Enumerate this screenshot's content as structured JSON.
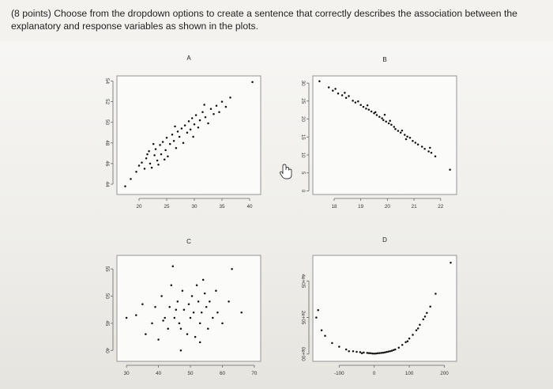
{
  "question": {
    "text": "(8 points) Choose from the dropdown options to create a sentence that correctly describes the association between the explanatory and response variables as shown in the plots."
  },
  "cursor": {
    "icon": "hand-cursor-icon"
  },
  "chart_data": [
    {
      "type": "scatter",
      "title": "A",
      "x_ticks": [
        "20",
        "25",
        "30",
        "35",
        "40"
      ],
      "y_ticks": [
        "44",
        "46",
        "48",
        "50",
        "52",
        "54"
      ],
      "xlim": [
        16,
        42
      ],
      "ylim": [
        43,
        54.5
      ],
      "points": [
        [
          17.5,
          43.8
        ],
        [
          18.5,
          44.5
        ],
        [
          19.5,
          45.2
        ],
        [
          20,
          45.8
        ],
        [
          20.5,
          46.1
        ],
        [
          21,
          45.5
        ],
        [
          21.3,
          46.5
        ],
        [
          21.8,
          47.2
        ],
        [
          22,
          46.0
        ],
        [
          22.3,
          45.6
        ],
        [
          22.8,
          46.8
        ],
        [
          23,
          47.4
        ],
        [
          23.3,
          46.3
        ],
        [
          23.8,
          47.8
        ],
        [
          24,
          46.9
        ],
        [
          24.3,
          48.1
        ],
        [
          24.8,
          47.3
        ],
        [
          25,
          48.5
        ],
        [
          25.2,
          46.7
        ],
        [
          25.6,
          47.9
        ],
        [
          26,
          48.8
        ],
        [
          26.3,
          48.2
        ],
        [
          26.7,
          47.5
        ],
        [
          27,
          49.1
        ],
        [
          27.3,
          48.6
        ],
        [
          27.7,
          49.4
        ],
        [
          28,
          48.0
        ],
        [
          28.3,
          49.7
        ],
        [
          28.7,
          49.0
        ],
        [
          29,
          50.1
        ],
        [
          29.3,
          49.3
        ],
        [
          29.6,
          50.4
        ],
        [
          30,
          49.8
        ],
        [
          30.3,
          50.7
        ],
        [
          30.7,
          49.5
        ],
        [
          31,
          50.2
        ],
        [
          31.5,
          51.0
        ],
        [
          32,
          50.5
        ],
        [
          32.5,
          49.9
        ],
        [
          33,
          51.3
        ],
        [
          33.5,
          50.8
        ],
        [
          34,
          51.6
        ],
        [
          34.5,
          51.0
        ],
        [
          35,
          52.0
        ],
        [
          35.7,
          51.5
        ],
        [
          36.5,
          52.4
        ],
        [
          40.5,
          53.9
        ],
        [
          21.5,
          46.9
        ],
        [
          22.6,
          47.9
        ],
        [
          24.6,
          46.4
        ],
        [
          26.5,
          49.6
        ],
        [
          29.8,
          48.6
        ],
        [
          31.8,
          51.7
        ],
        [
          23.5,
          45.9
        ]
      ]
    },
    {
      "type": "scatter",
      "title": "B",
      "x_ticks": [
        "18",
        "19",
        "20",
        "21",
        "22"
      ],
      "y_ticks": [
        "0",
        "5",
        "10",
        "15",
        "20",
        "25",
        "30"
      ],
      "xlim": [
        17.2,
        22.6
      ],
      "ylim": [
        -1,
        32
      ],
      "points": [
        [
          17.45,
          30.5
        ],
        [
          17.8,
          28.8
        ],
        [
          17.95,
          27.9
        ],
        [
          18.05,
          28.4
        ],
        [
          18.15,
          27.1
        ],
        [
          18.3,
          26.6
        ],
        [
          18.45,
          25.9
        ],
        [
          18.55,
          26.4
        ],
        [
          18.7,
          25.1
        ],
        [
          18.8,
          24.6
        ],
        [
          18.9,
          24.9
        ],
        [
          19.0,
          23.9
        ],
        [
          19.1,
          23.4
        ],
        [
          19.2,
          22.9
        ],
        [
          19.3,
          22.6
        ],
        [
          19.4,
          22.1
        ],
        [
          19.5,
          21.6
        ],
        [
          19.55,
          21.9
        ],
        [
          19.6,
          21.1
        ],
        [
          19.7,
          20.6
        ],
        [
          19.8,
          20.2
        ],
        [
          19.85,
          19.7
        ],
        [
          19.95,
          19.3
        ],
        [
          20.05,
          18.8
        ],
        [
          20.15,
          18.4
        ],
        [
          20.25,
          17.8
        ],
        [
          20.3,
          17.2
        ],
        [
          20.4,
          16.7
        ],
        [
          20.5,
          16.2
        ],
        [
          20.55,
          16.8
        ],
        [
          20.65,
          15.6
        ],
        [
          20.75,
          15.1
        ],
        [
          20.85,
          14.8
        ],
        [
          20.95,
          13.9
        ],
        [
          21.05,
          13.4
        ],
        [
          21.15,
          12.9
        ],
        [
          21.3,
          12.3
        ],
        [
          21.4,
          11.7
        ],
        [
          21.55,
          11.0
        ],
        [
          21.65,
          10.6
        ],
        [
          21.8,
          9.6
        ],
        [
          22.35,
          5.9
        ],
        [
          18.4,
          27.3
        ],
        [
          19.25,
          23.8
        ],
        [
          19.9,
          21.2
        ],
        [
          20.7,
          14.4
        ],
        [
          21.6,
          12.0
        ],
        [
          20.1,
          19.5
        ]
      ]
    },
    {
      "type": "scatter",
      "title": "C",
      "x_ticks": [
        "30",
        "40",
        "50",
        "60",
        "70"
      ],
      "y_ticks": [
        "40",
        "45",
        "50",
        "55"
      ],
      "xlim": [
        27,
        72
      ],
      "ylim": [
        38,
        57.5
      ],
      "points": [
        [
          30,
          46
        ],
        [
          33,
          46.5
        ],
        [
          35,
          48.5
        ],
        [
          36,
          43
        ],
        [
          38,
          45
        ],
        [
          39,
          48
        ],
        [
          40,
          42
        ],
        [
          41,
          50
        ],
        [
          42,
          46
        ],
        [
          43,
          44
        ],
        [
          43.5,
          48
        ],
        [
          44,
          52
        ],
        [
          45,
          46
        ],
        [
          46,
          49
        ],
        [
          46.5,
          45
        ],
        [
          47,
          44
        ],
        [
          47.5,
          51
        ],
        [
          48,
          47.5
        ],
        [
          49,
          43
        ],
        [
          49.5,
          48.5
        ],
        [
          50,
          46
        ],
        [
          50.5,
          50
        ],
        [
          51,
          47
        ],
        [
          51.5,
          42.5
        ],
        [
          52,
          52
        ],
        [
          52.5,
          49
        ],
        [
          53,
          45
        ],
        [
          53.5,
          47
        ],
        [
          54,
          53
        ],
        [
          55,
          48
        ],
        [
          55.5,
          44
        ],
        [
          56,
          49
        ],
        [
          57,
          46
        ],
        [
          58,
          51
        ],
        [
          58.5,
          47
        ],
        [
          60,
          45
        ],
        [
          62,
          49
        ],
        [
          63,
          55
        ],
        [
          66,
          47
        ],
        [
          44.5,
          55.5
        ],
        [
          47,
          40
        ],
        [
          53,
          41.5
        ],
        [
          45.5,
          47.5
        ],
        [
          41.5,
          45.5
        ],
        [
          54.5,
          50.5
        ]
      ]
    },
    {
      "type": "scatter",
      "title": "D",
      "x_ticks": [
        "-100",
        "0",
        "100",
        "200"
      ],
      "y_ticks": [
        "0e+00",
        "2e+05",
        "4e+05"
      ],
      "xlim": [
        -175,
        235
      ],
      "ylim": [
        -40000,
        540000
      ],
      "points": [
        [
          -165,
          200000
        ],
        [
          -160,
          240000
        ],
        [
          -150,
          130000
        ],
        [
          -140,
          100000
        ],
        [
          -120,
          60000
        ],
        [
          -100,
          40000
        ],
        [
          -80,
          25000
        ],
        [
          -60,
          15000
        ],
        [
          -50,
          12000
        ],
        [
          -40,
          10000
        ],
        [
          -30,
          8000
        ],
        [
          -20,
          6000
        ],
        [
          -15,
          5000
        ],
        [
          -10,
          4000
        ],
        [
          -5,
          3000
        ],
        [
          0,
          2500
        ],
        [
          5,
          3000
        ],
        [
          10,
          4000
        ],
        [
          15,
          5000
        ],
        [
          20,
          6000
        ],
        [
          25,
          7000
        ],
        [
          30,
          9000
        ],
        [
          35,
          11000
        ],
        [
          40,
          13000
        ],
        [
          45,
          15000
        ],
        [
          50,
          18000
        ],
        [
          60,
          25000
        ],
        [
          70,
          35000
        ],
        [
          80,
          50000
        ],
        [
          90,
          65000
        ],
        [
          100,
          85000
        ],
        [
          110,
          105000
        ],
        [
          120,
          130000
        ],
        [
          130,
          160000
        ],
        [
          140,
          190000
        ],
        [
          150,
          225000
        ],
        [
          160,
          260000
        ],
        [
          175,
          330000
        ],
        [
          218,
          500000
        ],
        [
          -72,
          15000
        ],
        [
          -35,
          4000
        ],
        [
          55,
          22000
        ],
        [
          95,
          70000
        ],
        [
          125,
          140000
        ],
        [
          145,
          205000
        ]
      ]
    }
  ]
}
